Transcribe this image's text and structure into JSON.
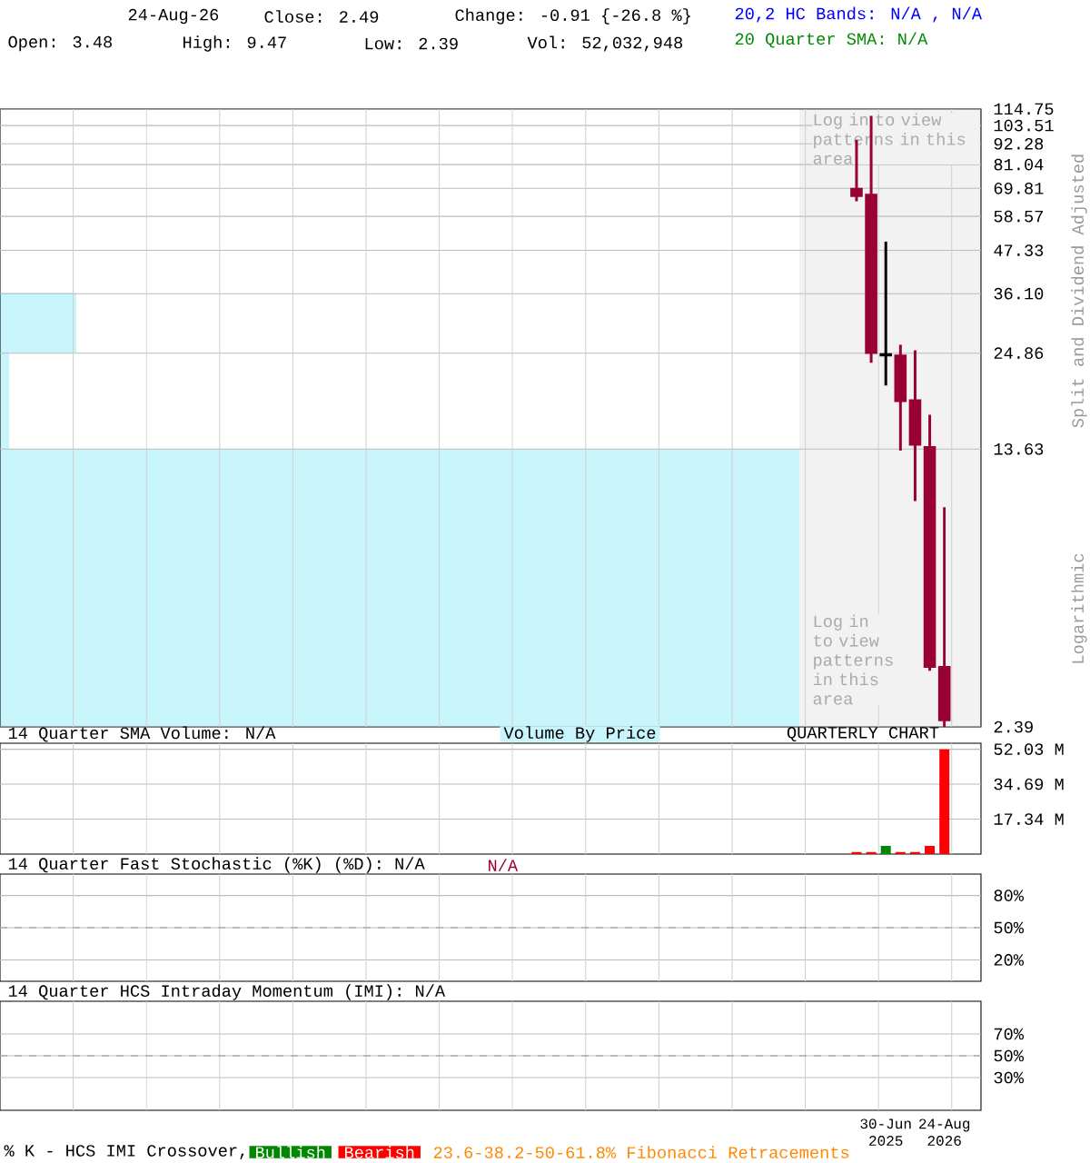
{
  "chart_data": [
    {
      "type": "candlestick",
      "categories": [
        null,
        null,
        null,
        null,
        null,
        null,
        null,
        null,
        null,
        null,
        null,
        null,
        null,
        null,
        null,
        null,
        null,
        null,
        null,
        null,
        null,
        null,
        null,
        null,
        null,
        null,
        null,
        null,
        null,
        null,
        null,
        null,
        null,
        null,
        null,
        null,
        null,
        null,
        null,
        null,
        null,
        null,
        null,
        null,
        null,
        null,
        null,
        null,
        null,
        null,
        null,
        null,
        null,
        null,
        null,
        null,
        null,
        null,
        null,
        null,
        null,
        null,
        null,
        null,
        null,
        null,
        null
      ],
      "ohlc": [
        null,
        null,
        null,
        null,
        null,
        null,
        null,
        null,
        null,
        null,
        null,
        null,
        null,
        null,
        null,
        null,
        null,
        null,
        null,
        null,
        null,
        null,
        null,
        null,
        null,
        null,
        null,
        null,
        null,
        null,
        null,
        null,
        null,
        null,
        null,
        null,
        null,
        null,
        null,
        null,
        null,
        null,
        null,
        null,
        null,
        null,
        null,
        null,
        null,
        null,
        null,
        null,
        null,
        null,
        null,
        null,
        null,
        null,
        [
          69.6,
          94.6,
          64.4,
          66.5
        ],
        [
          67.1,
          110.0,
          23.4,
          24.9
        ],
        [
          24.5,
          50.0,
          20.3,
          24.7
        ],
        [
          24.5,
          26.2,
          13.5,
          18.4
        ],
        [
          18.5,
          25.3,
          9.84,
          14.0
        ],
        [
          13.8,
          16.9,
          3.4,
          3.48
        ],
        [
          3.48,
          9.47,
          2.39,
          2.49
        ],
        null,
        null
      ],
      "colors": [
        null,
        null,
        null,
        null,
        null,
        null,
        null,
        null,
        null,
        null,
        null,
        null,
        null,
        null,
        null,
        null,
        null,
        null,
        null,
        null,
        null,
        null,
        null,
        null,
        null,
        null,
        null,
        null,
        null,
        null,
        null,
        null,
        null,
        null,
        null,
        null,
        null,
        null,
        null,
        null,
        null,
        null,
        null,
        null,
        null,
        null,
        null,
        null,
        null,
        null,
        null,
        null,
        null,
        null,
        null,
        null,
        null,
        null,
        "#990033",
        "#990033",
        "#000000",
        "#990033",
        "#990033",
        "#990033",
        "#990033",
        null,
        null
      ],
      "log": "y",
      "ylim": [
        2.39,
        114.75
      ],
      "yticks": [
        2.39,
        13.63,
        24.86,
        {
          "value": 36.1,
          "label": "36.10"
        },
        47.33,
        58.57,
        69.81,
        81.04,
        92.28,
        103.51,
        114.75
      ],
      "ylabel": "Split and Dividend Adjusted",
      "grid": true,
      "tick_labels": "y",
      "annotations": [
        "24-Aug-26",
        "Close: 2.49",
        "Change: -0.91 {-26.8 %}",
        "Open: 3.48",
        "High: 9.47",
        "Low: 2.39",
        "Vol: 52,032,948",
        "20,2 HC Bands: N/A , N/A",
        "20 Quarter SMA: N/A",
        "Log in to view patterns in this area",
        "Log in to view patterns in this area",
        "Logarithmic"
      ]
    },
    {
      "type": "bar",
      "categories": [
        null,
        null,
        null,
        null,
        null,
        null,
        null,
        null,
        null,
        null,
        null,
        null,
        null,
        null,
        null,
        null,
        null,
        null,
        null,
        null,
        null,
        null,
        null,
        null,
        null,
        null,
        null,
        null,
        null,
        null,
        null,
        null,
        null,
        null,
        null,
        null,
        null,
        null,
        null,
        null,
        null,
        null,
        null,
        null,
        null,
        null,
        null,
        null,
        null,
        null,
        null,
        null,
        null,
        null,
        null,
        null,
        null,
        null,
        null,
        null,
        null,
        null,
        null,
        null,
        null,
        null,
        null
      ],
      "values": [
        null,
        null,
        null,
        null,
        null,
        null,
        null,
        null,
        null,
        null,
        null,
        null,
        null,
        null,
        null,
        null,
        null,
        null,
        null,
        null,
        null,
        null,
        null,
        null,
        null,
        null,
        null,
        null,
        null,
        null,
        null,
        null,
        null,
        null,
        null,
        null,
        null,
        null,
        null,
        null,
        null,
        null,
        null,
        null,
        null,
        null,
        null,
        null,
        null,
        null,
        null,
        null,
        null,
        null,
        null,
        null,
        null,
        null,
        1,
        1,
        4,
        1,
        1,
        4,
        52.03,
        null,
        null
      ],
      "colors": [
        null,
        null,
        null,
        null,
        null,
        null,
        null,
        null,
        null,
        null,
        null,
        null,
        null,
        null,
        null,
        null,
        null,
        null,
        null,
        null,
        null,
        null,
        null,
        null,
        null,
        null,
        null,
        null,
        null,
        null,
        null,
        null,
        null,
        null,
        null,
        null,
        null,
        null,
        null,
        null,
        null,
        null,
        null,
        null,
        null,
        null,
        null,
        null,
        null,
        null,
        null,
        null,
        null,
        null,
        null,
        null,
        null,
        null,
        "#ff0000",
        "#ff0000",
        "#008800",
        "#ff0000",
        "#ff0000",
        "#ff0000",
        "#ff0000",
        null,
        null
      ],
      "ylim": [
        0,
        55
      ],
      "yticks": [
        {
          "value": 17.34,
          "label": "17.34 M"
        },
        {
          "value": 34.69,
          "label": "34.69 M"
        },
        {
          "value": 52.03,
          "label": "52.03 M"
        }
      ],
      "grid": true,
      "tick_labels": "y",
      "title": "QUARTERLY CHART",
      "annotations": [
        "14 Quarter SMA Volume: N/A",
        "Volume By Price"
      ]
    },
    {
      "type": "line",
      "categories": [
        null,
        null,
        null,
        null,
        null,
        null,
        null,
        null,
        null,
        null,
        null,
        null,
        null,
        null,
        null,
        null,
        null,
        null,
        null,
        null,
        null,
        null,
        null,
        null,
        null,
        null,
        null,
        null,
        null,
        null,
        null,
        null,
        null,
        null,
        null,
        null,
        null,
        null,
        null,
        null,
        null,
        null,
        null,
        null,
        null,
        null,
        null,
        null,
        null,
        null,
        null,
        null,
        null,
        null,
        null,
        null,
        null,
        null,
        null,
        null,
        null,
        null,
        null,
        null,
        null,
        null,
        null
      ],
      "values": [
        null,
        null,
        null,
        null,
        null,
        null,
        null,
        null,
        null,
        null,
        null,
        null,
        null,
        null,
        null,
        null,
        null,
        null,
        null,
        null,
        null,
        null,
        null,
        null,
        null,
        null,
        null,
        null,
        null,
        null,
        null,
        null,
        null,
        null,
        null,
        null,
        null,
        null,
        null,
        null,
        null,
        null,
        null,
        null,
        null,
        null,
        null,
        null,
        null,
        null,
        null,
        null,
        null,
        null,
        null,
        null,
        null,
        null,
        null,
        null,
        null,
        null,
        null,
        null,
        null,
        null,
        null
      ],
      "ylim": [
        0,
        100
      ],
      "yticks": [
        {
          "value": 20,
          "label": "20%"
        },
        {
          "value": 50,
          "label": "50%"
        },
        {
          "value": 80,
          "label": "80%"
        }
      ],
      "grid": true,
      "tick_labels": "y",
      "ref_lines": [
        {
          "axis": "y",
          "value": 50,
          "line_style": "dashed"
        }
      ],
      "title": "14 Quarter Fast Stochastic (%K) (%D): N/A",
      "subtitle": "N/A"
    },
    {
      "type": "line",
      "categories": [
        null,
        null,
        null,
        null,
        null,
        null,
        null,
        null,
        null,
        null,
        null,
        null,
        null,
        null,
        null,
        null,
        null,
        null,
        null,
        null,
        null,
        null,
        null,
        null,
        null,
        null,
        null,
        null,
        null,
        null,
        null,
        null,
        null,
        null,
        null,
        null,
        null,
        null,
        null,
        null,
        null,
        null,
        null,
        null,
        null,
        null,
        null,
        null,
        null,
        null,
        null,
        null,
        null,
        null,
        null,
        null,
        null,
        null,
        null,
        null,
        "30-Jun 2025",
        null,
        null,
        null,
        "24-Aug 2026",
        null,
        null
      ],
      "values": [
        null,
        null,
        null,
        null,
        null,
        null,
        null,
        null,
        null,
        null,
        null,
        null,
        null,
        null,
        null,
        null,
        null,
        null,
        null,
        null,
        null,
        null,
        null,
        null,
        null,
        null,
        null,
        null,
        null,
        null,
        null,
        null,
        null,
        null,
        null,
        null,
        null,
        null,
        null,
        null,
        null,
        null,
        null,
        null,
        null,
        null,
        null,
        null,
        null,
        null,
        null,
        null,
        null,
        null,
        null,
        null,
        null,
        null,
        null,
        null,
        null,
        null,
        null,
        null,
        null,
        null,
        null
      ],
      "ylim": [
        0,
        100
      ],
      "yticks": [
        {
          "value": 30,
          "label": "30%"
        },
        {
          "value": 50,
          "label": "50%"
        },
        {
          "value": 70,
          "label": "70%"
        }
      ],
      "grid": true,
      "ref_lines": [
        {
          "axis": "y",
          "value": 50,
          "line_style": "dashed"
        }
      ],
      "title": "14 Quarter HCS Intraday Momentum (IMI): N/A",
      "annotations": [
        "% K - HCS IMI Crossover,",
        "Bullish",
        "Bearish",
        "23.6-38.2-50-61.8% Fibonacci Retracements"
      ]
    }
  ]
}
